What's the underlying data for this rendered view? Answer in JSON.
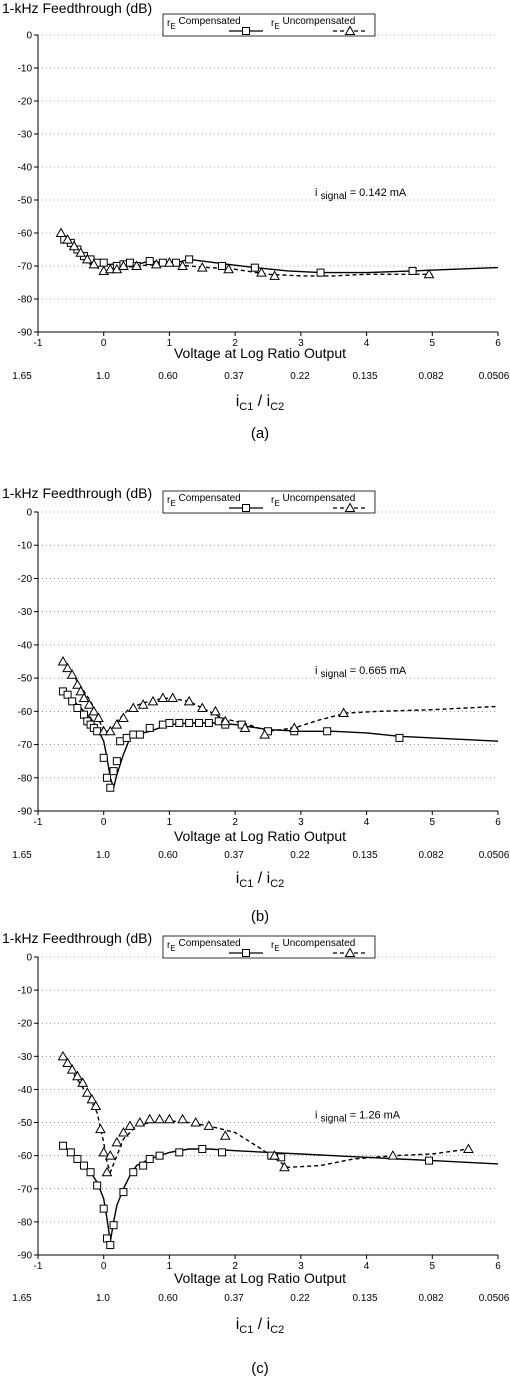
{
  "chart_data": [
    {
      "type": "line",
      "panel_label": "(a)",
      "title": "1-kHz Feedthrough (dB)",
      "xlabel": "Voltage at Log Ratio Output",
      "xlim": [
        -1,
        6
      ],
      "ylim": [
        -90,
        0
      ],
      "x_ticks": [
        "-1",
        "0",
        "1",
        "2",
        "3",
        "4",
        "5",
        "6"
      ],
      "y_ticks": [
        "0",
        "-10",
        "-20",
        "-30",
        "-40",
        "-50",
        "-60",
        "-70",
        "-80",
        "-90"
      ],
      "grid": "dotted horizontal",
      "legend": {
        "position": "top",
        "entries": [
          "r_E Compensated",
          "r_E Uncompensated"
        ]
      },
      "annotation": {
        "prefix": "i",
        "sub": "signal",
        "value": "= 0.142 mA"
      },
      "ratio_label": {
        "num": "C1",
        "den": "C2"
      },
      "ratio_ticks": [
        "1.65",
        "1.0",
        "0.60",
        "0.37",
        "0.22",
        "0.135",
        "0.082",
        "0.0506"
      ],
      "series": [
        {
          "name": "r_E Compensated",
          "marker": "square",
          "style": "solid",
          "x": [
            -0.6,
            -0.5,
            -0.4,
            -0.3,
            -0.2,
            -0.1,
            0.0,
            0.1,
            0.3,
            0.5,
            0.7,
            0.9,
            1.1,
            1.3,
            1.5,
            1.9,
            2.3,
            2.8,
            3.3,
            4.0,
            4.7,
            5.3,
            6.0
          ],
          "values": [
            -62,
            -64,
            -66,
            -68,
            -69,
            -69.5,
            -69.5,
            -69.5,
            -69,
            -69.5,
            -68.5,
            -69,
            -69,
            -68,
            -68.5,
            -69.5,
            -70.5,
            -71.5,
            -72,
            -72,
            -71.5,
            -71,
            -70.5
          ],
          "markers_x": [
            -0.6,
            -0.5,
            -0.4,
            -0.3,
            -0.2,
            -0.1,
            0.0,
            0.2,
            0.3,
            0.4,
            0.5,
            0.7,
            0.9,
            1.1,
            1.3,
            1.8,
            2.3,
            3.3,
            4.7
          ],
          "markers_y": [
            -62,
            -63,
            -65,
            -67,
            -68,
            -69,
            -69,
            -70,
            -69.5,
            -69,
            -70,
            -68.5,
            -69,
            -69,
            -68,
            -70,
            -70.5,
            -72,
            -71.5
          ]
        },
        {
          "name": "r_E Uncompensated",
          "marker": "triangle",
          "style": "dashed",
          "x": [
            -0.65,
            -0.55,
            -0.45,
            -0.35,
            -0.25,
            -0.1,
            0.0,
            0.1,
            0.3,
            0.5,
            0.8,
            1.0,
            1.3,
            1.6,
            2.0,
            2.5,
            3.0,
            3.5,
            4.0,
            4.5,
            5.0
          ],
          "values": [
            -60,
            -62,
            -64,
            -67,
            -69,
            -70.5,
            -71.5,
            -71,
            -70.5,
            -70,
            -69.5,
            -69.5,
            -70,
            -70.5,
            -71,
            -72.5,
            -73,
            -73,
            -72.5,
            -72.5,
            -72.5
          ],
          "markers_x": [
            -0.65,
            -0.55,
            -0.45,
            -0.35,
            -0.25,
            -0.15,
            0.0,
            0.1,
            0.2,
            0.3,
            0.5,
            0.8,
            1.0,
            1.2,
            1.5,
            1.9,
            2.4,
            2.6,
            4.95
          ],
          "markers_y": [
            -60,
            -62,
            -64,
            -66,
            -68,
            -69.5,
            -71.5,
            -71,
            -71,
            -70,
            -70,
            -69.5,
            -69,
            -70,
            -70.5,
            -71,
            -72,
            -73,
            -72.5
          ]
        }
      ]
    },
    {
      "type": "line",
      "panel_label": "(b)",
      "title": "1-kHz Feedthrough (dB)",
      "xlabel": "Voltage at Log Ratio Output",
      "xlim": [
        -1,
        6
      ],
      "ylim": [
        -90,
        0
      ],
      "x_ticks": [
        "-1",
        "0",
        "1",
        "2",
        "3",
        "4",
        "5",
        "6"
      ],
      "y_ticks": [
        "0",
        "-10",
        "-20",
        "-30",
        "-40",
        "-50",
        "-60",
        "-70",
        "-80",
        "-90"
      ],
      "grid": "dotted horizontal",
      "legend": {
        "position": "top",
        "entries": [
          "r_E Compensated",
          "r_E Uncompensated"
        ]
      },
      "annotation": {
        "prefix": "i",
        "sub": "signal",
        "value": "= 0.665 mA"
      },
      "ratio_label": {
        "num": "C1",
        "den": "C2"
      },
      "ratio_ticks": [
        "1.65",
        "1.0",
        "0.60",
        "0.37",
        "0.22",
        "0.135",
        "0.082",
        "0.0506"
      ],
      "series": [
        {
          "name": "r_E Compensated",
          "marker": "square",
          "style": "solid",
          "x": [
            -0.62,
            -0.5,
            -0.4,
            -0.3,
            -0.2,
            -0.1,
            0.0,
            0.05,
            0.1,
            0.15,
            0.2,
            0.3,
            0.4,
            0.5,
            0.7,
            1.0,
            1.3,
            1.7,
            2.0,
            2.5,
            3.0,
            3.5,
            4.0,
            4.5,
            5.0,
            5.5,
            6.0
          ],
          "values": [
            -54,
            -56,
            -58,
            -60,
            -62,
            -65,
            -69,
            -74,
            -80,
            -83,
            -79,
            -73,
            -68,
            -67,
            -66,
            -64,
            -63.5,
            -63.5,
            -64,
            -65.5,
            -66,
            -66,
            -66.5,
            -67.5,
            -68,
            -68.5,
            -69
          ],
          "markers_x": [
            -0.62,
            -0.55,
            -0.48,
            -0.4,
            -0.3,
            -0.25,
            -0.2,
            -0.15,
            -0.1,
            0.0,
            0.05,
            0.1,
            0.15,
            0.2,
            0.25,
            0.35,
            0.45,
            0.55,
            0.7,
            0.9,
            1.0,
            1.15,
            1.3,
            1.45,
            1.6,
            1.75,
            1.85,
            2.1,
            2.5,
            2.9,
            3.4,
            4.5
          ],
          "markers_y": [
            -54,
            -55,
            -57,
            -59,
            -61,
            -63,
            -64,
            -65,
            -66,
            -74,
            -80,
            -83,
            -78,
            -75,
            -69,
            -68,
            -67,
            -67,
            -65,
            -64,
            -63.5,
            -63.5,
            -63.5,
            -63.5,
            -63.5,
            -63,
            -64,
            -64,
            -66,
            -66,
            -66,
            -68
          ]
        },
        {
          "name": "r_E Uncompensated",
          "marker": "triangle",
          "style": "dashed",
          "x": [
            -0.62,
            -0.5,
            -0.4,
            -0.3,
            -0.2,
            -0.1,
            0.0,
            0.1,
            0.2,
            0.4,
            0.6,
            0.8,
            1.0,
            1.3,
            1.5,
            1.8,
            2.2,
            2.5,
            2.9,
            3.3,
            3.7,
            4.2,
            5.0,
            6.0
          ],
          "values": [
            -45,
            -48,
            -51,
            -54,
            -57,
            -61,
            -66,
            -66,
            -63,
            -59,
            -57.5,
            -56.5,
            -56,
            -57,
            -59,
            -62,
            -64,
            -66,
            -65,
            -62.5,
            -60.5,
            -60,
            -59.5,
            -58.5
          ],
          "markers_x": [
            -0.62,
            -0.55,
            -0.48,
            -0.4,
            -0.35,
            -0.3,
            -0.22,
            -0.15,
            -0.08,
            0.0,
            0.1,
            0.2,
            0.3,
            0.45,
            0.6,
            0.75,
            0.9,
            1.05,
            1.3,
            1.5,
            1.7,
            1.85,
            2.15,
            2.45,
            2.9,
            3.65
          ],
          "markers_y": [
            -45,
            -47,
            -49,
            -52,
            -54,
            -56,
            -58,
            -60,
            -62,
            -66,
            -66,
            -64,
            -62,
            -59,
            -58,
            -57,
            -56,
            -56,
            -57,
            -59,
            -60,
            -63,
            -65,
            -67,
            -65,
            -60.5
          ]
        }
      ]
    },
    {
      "type": "line",
      "panel_label": "(c)",
      "title": "1-kHz Feedthrough (dB)",
      "xlabel": "Voltage at Log Ratio Output",
      "xlim": [
        -1,
        6
      ],
      "ylim": [
        -90,
        0
      ],
      "x_ticks": [
        "-1",
        "0",
        "1",
        "2",
        "3",
        "4",
        "5",
        "6"
      ],
      "y_ticks": [
        "0",
        "-10",
        "-20",
        "-30",
        "-40",
        "-50",
        "-60",
        "-70",
        "-80",
        "-90"
      ],
      "grid": "dotted horizontal",
      "legend": {
        "position": "top",
        "entries": [
          "r_E Compensated",
          "r_E Uncompensated"
        ]
      },
      "annotation": {
        "prefix": "i",
        "sub": "signal",
        "value": "= 1.26 mA"
      },
      "ratio_label": {
        "num": "C1",
        "den": "C2"
      },
      "ratio_ticks": [
        "1.65",
        "1.0",
        "0.60",
        "0.37",
        "0.22",
        "0.135",
        "0.082",
        "0.0506"
      ],
      "series": [
        {
          "name": "r_E Compensated",
          "marker": "square",
          "style": "solid",
          "x": [
            -0.62,
            -0.5,
            -0.4,
            -0.3,
            -0.2,
            -0.1,
            0.0,
            0.05,
            0.1,
            0.15,
            0.2,
            0.3,
            0.4,
            0.5,
            0.7,
            1.0,
            1.3,
            1.6,
            2.0,
            2.5,
            3.0,
            3.5,
            4.0,
            4.5,
            5.0,
            6.0
          ],
          "values": [
            -57,
            -59,
            -61,
            -63,
            -65,
            -68,
            -73,
            -79,
            -86,
            -80,
            -75,
            -70,
            -66,
            -63,
            -61,
            -59,
            -58,
            -58,
            -58.5,
            -59,
            -59.5,
            -60,
            -60.5,
            -61,
            -61.5,
            -62.5
          ],
          "markers_x": [
            -0.62,
            -0.5,
            -0.4,
            -0.3,
            -0.2,
            -0.1,
            0.0,
            0.05,
            0.1,
            0.15,
            0.3,
            0.45,
            0.6,
            0.7,
            0.85,
            1.15,
            1.5,
            1.8,
            2.55,
            2.7,
            4.95
          ],
          "markers_y": [
            -57,
            -59,
            -61,
            -63,
            -65,
            -69,
            -76,
            -85,
            -87,
            -81,
            -71,
            -65,
            -63,
            -61,
            -60,
            -59,
            -58,
            -59,
            -60,
            -60.5,
            -61.5
          ]
        },
        {
          "name": "r_E Uncompensated",
          "marker": "triangle",
          "style": "dashed",
          "x": [
            -0.62,
            -0.5,
            -0.4,
            -0.3,
            -0.2,
            -0.1,
            0.0,
            0.05,
            0.1,
            0.2,
            0.3,
            0.5,
            0.7,
            1.0,
            1.3,
            1.6,
            2.0,
            2.4,
            2.8,
            3.3,
            3.8,
            4.4,
            5.0,
            5.55
          ],
          "values": [
            -30,
            -34,
            -37,
            -40,
            -43,
            -47,
            -56,
            -62,
            -65,
            -60,
            -55,
            -51,
            -50,
            -49.5,
            -50,
            -51,
            -53,
            -58,
            -63.5,
            -63,
            -61,
            -60,
            -59.5,
            -58
          ],
          "markers_x": [
            -0.62,
            -0.55,
            -0.48,
            -0.4,
            -0.32,
            -0.25,
            -0.18,
            -0.12,
            -0.05,
            0.0,
            0.05,
            0.1,
            0.2,
            0.3,
            0.4,
            0.55,
            0.7,
            0.85,
            1.0,
            1.2,
            1.4,
            1.6,
            1.85,
            2.6,
            2.75,
            4.4,
            5.55
          ],
          "markers_y": [
            -30,
            -32,
            -34,
            -36,
            -38,
            -41,
            -43,
            -45,
            -52,
            -59,
            -65,
            -60,
            -56,
            -53,
            -51,
            -50,
            -49,
            -49,
            -49,
            -49,
            -50,
            -51,
            -54,
            -60,
            -63.5,
            -60,
            -58
          ]
        }
      ]
    }
  ]
}
